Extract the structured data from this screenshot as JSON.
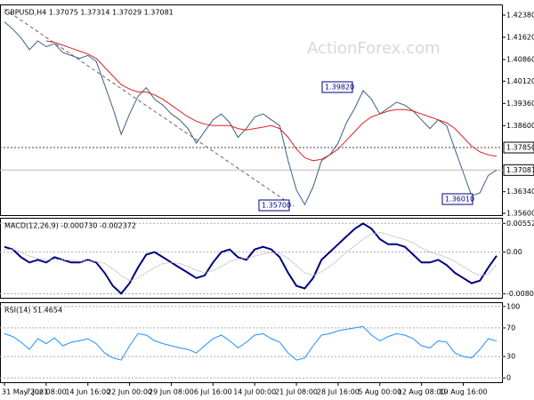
{
  "chart_data": [
    {
      "type": "line",
      "title": "GBPUSD,H4 1.37075 1.37314 1.37029 1.37081",
      "watermark": "ActionForex.com",
      "categories": [
        "31 May 2021",
        null,
        null,
        null,
        null,
        "7 Jun 08:00",
        null,
        null,
        null,
        null,
        "14 Jun 16:00",
        null,
        null,
        null,
        null,
        "22 Jun 00:00",
        null,
        null,
        null,
        null,
        "29 Jun 08:00",
        null,
        null,
        null,
        null,
        "6 Jul 16:00",
        null,
        null,
        null,
        null,
        "14 Jul 00:00",
        null,
        null,
        null,
        null,
        "21 Jul 08:00",
        null,
        null,
        null,
        null,
        "28 Jul 16:00",
        null,
        null,
        null,
        null,
        "5 Aug 00:00",
        null,
        null,
        null,
        null,
        "12 Aug 08:00",
        null,
        null,
        null,
        null,
        "19 Aug 16:00",
        null,
        null,
        null,
        null
      ],
      "series": [
        {
          "name": "GBPUSD",
          "color": "#3d5f80",
          "values": [
            1.4215,
            1.419,
            1.416,
            1.412,
            1.415,
            1.413,
            1.414,
            1.411,
            1.41,
            1.409,
            1.41,
            1.408,
            1.4,
            1.392,
            1.383,
            1.39,
            1.396,
            1.399,
            1.395,
            1.393,
            1.39,
            1.388,
            1.385,
            1.38,
            1.384,
            1.388,
            1.39,
            1.387,
            1.382,
            1.385,
            1.389,
            1.39,
            1.388,
            1.386,
            1.374,
            1.364,
            1.359,
            1.365,
            1.374,
            1.376,
            1.38,
            1.387,
            1.392,
            1.398,
            1.395,
            1.39,
            1.392,
            1.394,
            1.393,
            1.391,
            1.388,
            1.385,
            1.388,
            1.386,
            1.378,
            1.37,
            1.362,
            1.363,
            1.369,
            1.3708
          ]
        },
        {
          "name": "MA",
          "color": "#e02020",
          "values": [
            null,
            null,
            null,
            null,
            null,
            1.415,
            1.4145,
            1.4135,
            1.4125,
            1.4115,
            1.4105,
            1.409,
            1.406,
            1.403,
            1.4,
            1.3985,
            1.3975,
            1.3975,
            1.3965,
            1.395,
            1.393,
            1.391,
            1.389,
            1.3875,
            1.3865,
            1.386,
            1.386,
            1.386,
            1.385,
            1.3845,
            1.385,
            1.3855,
            1.386,
            1.385,
            1.382,
            1.378,
            1.375,
            1.374,
            1.3745,
            1.376,
            1.378,
            1.381,
            1.384,
            1.387,
            1.389,
            1.39,
            1.391,
            1.3915,
            1.3915,
            1.391,
            1.39,
            1.389,
            1.388,
            1.387,
            1.385,
            1.382,
            1.379,
            1.377,
            1.376,
            1.3755
          ]
        }
      ],
      "ylim": [
        1.42745,
        1.3554
      ],
      "yticks": [
        {
          "value": 1.4238,
          "label": "1.42380"
        },
        {
          "value": 1.4162,
          "label": "1.41620"
        },
        {
          "value": 1.4086,
          "label": "1.40860"
        },
        {
          "value": 1.4012,
          "label": "1.40120"
        },
        {
          "value": 1.3936,
          "label": "1.39360"
        },
        {
          "value": 1.386,
          "label": "1.38600"
        },
        {
          "value": 1.3634,
          "label": "1.36340"
        },
        {
          "value": 1.356,
          "label": "1.35600"
        }
      ],
      "levels": [
        {
          "value": 1.3785,
          "label": "1.37850"
        },
        {
          "value": 1.37081,
          "label": "1.37081"
        }
      ],
      "annotations": [
        "1.39820",
        "1.35700",
        "1.36010"
      ]
    },
    {
      "type": "line",
      "title": "MACD(12,26,9) -0.000730 -0.002372",
      "series": [
        {
          "name": "MACD",
          "color": "#000080",
          "values": [
            0.001,
            0.0005,
            -0.001,
            -0.002,
            -0.0015,
            -0.002,
            -0.001,
            -0.0015,
            -0.002,
            -0.002,
            -0.0015,
            -0.002,
            -0.004,
            -0.0065,
            -0.008,
            -0.006,
            -0.003,
            -0.0005,
            0,
            -0.001,
            -0.002,
            -0.003,
            -0.004,
            -0.005,
            -0.0045,
            -0.002,
            0,
            0.0005,
            -0.001,
            -0.0015,
            0.0005,
            0.001,
            0.0005,
            -0.001,
            -0.004,
            -0.0065,
            -0.007,
            -0.005,
            -0.0015,
            0,
            0.0015,
            0.003,
            0.0045,
            0.0055,
            0.0045,
            0.0025,
            0.0015,
            0.0015,
            0.001,
            -0.0005,
            -0.002,
            -0.002,
            -0.0015,
            -0.0025,
            -0.004,
            -0.005,
            -0.006,
            -0.0055,
            -0.003,
            -0.0007
          ]
        },
        {
          "name": "Signal",
          "color": "#b8b8b8",
          "values": [
            0.0005,
            0.0005,
            0,
            -0.0008,
            -0.0012,
            -0.0015,
            -0.0015,
            -0.0015,
            -0.0016,
            -0.0018,
            -0.0017,
            -0.0018,
            -0.0022,
            -0.0032,
            -0.0045,
            -0.0055,
            -0.005,
            -0.004,
            -0.003,
            -0.0022,
            -0.002,
            -0.0022,
            -0.0028,
            -0.0035,
            -0.004,
            -0.0036,
            -0.0028,
            -0.0018,
            -0.0013,
            -0.0012,
            -0.0008,
            -0.0004,
            -0.0001,
            -0.0003,
            -0.0012,
            -0.0026,
            -0.004,
            -0.0045,
            -0.0038,
            -0.0028,
            -0.0015,
            0,
            0.0012,
            0.0025,
            0.0035,
            0.0038,
            0.0034,
            0.0028,
            0.0024,
            0.0018,
            0.0008,
            0,
            -0.0005,
            -0.001,
            -0.0018,
            -0.0028,
            -0.0038,
            -0.0045,
            -0.0042,
            -0.0024
          ]
        }
      ],
      "ylim": [
        0.0066,
        -0.0088
      ],
      "yticks": [
        0.00552,
        {
          "value": 0,
          "label": "0.00"
        },
        -0.00804
      ]
    },
    {
      "type": "line",
      "title": "RSI(14) 51.4654",
      "series": [
        {
          "name": "RSI",
          "color": "#1e90ff",
          "values": [
            62,
            58,
            50,
            40,
            55,
            48,
            56,
            45,
            50,
            52,
            55,
            48,
            35,
            28,
            25,
            45,
            62,
            60,
            52,
            48,
            45,
            42,
            40,
            35,
            45,
            55,
            60,
            52,
            42,
            50,
            60,
            62,
            55,
            50,
            35,
            25,
            28,
            45,
            60,
            62,
            66,
            68,
            70,
            72,
            60,
            52,
            58,
            62,
            60,
            55,
            45,
            42,
            52,
            50,
            35,
            30,
            28,
            40,
            55,
            51.4654
          ]
        }
      ],
      "ylim": [
        106,
        -6
      ],
      "yticks": [
        100,
        70,
        30,
        0
      ]
    }
  ]
}
